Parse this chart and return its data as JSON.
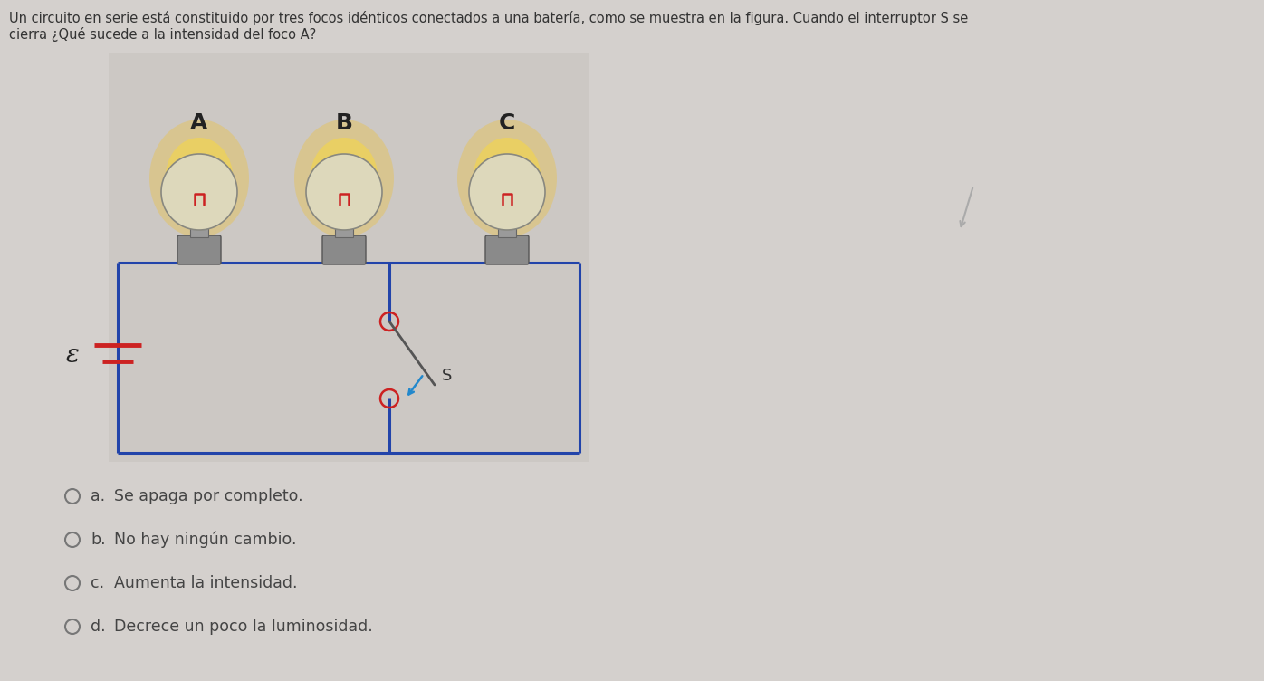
{
  "title_line1": "Un circuito en serie está constituido por tres focos idénticos conectados a una batería, como se muestra en la figura. Cuando el interruptor S se",
  "title_line2": "cierra ¿Qué sucede a la intensidad del foco A?",
  "bg_color": "#d4d0cd",
  "circuit_bg": "#ccc8c4",
  "wire_color": "#2244aa",
  "battery_red": "#cc2222",
  "switch_red": "#cc2222",
  "switch_blue": "#2288cc",
  "bulb_labels": [
    "A",
    "B",
    "C"
  ],
  "options": [
    [
      "a.",
      "Se apaga por completo."
    ],
    [
      "b.",
      "No hay ningún cambio."
    ],
    [
      "c.",
      "Aumenta la intensidad."
    ],
    [
      "d.",
      "Decrece un poco la luminosidad."
    ]
  ],
  "title_fontsize": 10.5,
  "label_fontsize": 18,
  "option_fontsize": 12.5,
  "epsilon_fontsize": 20
}
